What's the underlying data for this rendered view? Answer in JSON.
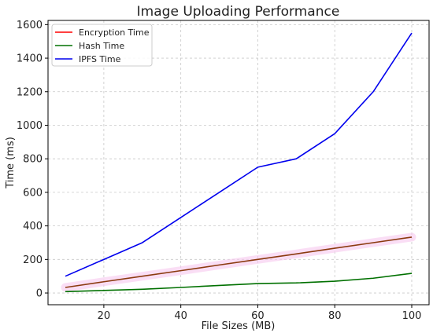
{
  "chart_data": {
    "type": "line",
    "title": "Image Uploading Performance",
    "xlabel": "File Sizes (MB)",
    "ylabel": "Time (ms)",
    "x": [
      10,
      20,
      30,
      40,
      50,
      60,
      70,
      80,
      90,
      100
    ],
    "xlim": [
      5.5,
      104.5
    ],
    "ylim": [
      -70,
      1625
    ],
    "xticks": [
      20,
      40,
      60,
      80,
      100
    ],
    "yticks": [
      0,
      200,
      400,
      600,
      800,
      1000,
      1200,
      1400,
      1600
    ],
    "grid": true,
    "legend_position": "top-left",
    "series": [
      {
        "name": "Encryption Time",
        "color": "#ff0000",
        "values": [
          33,
          67,
          100,
          133,
          167,
          200,
          233,
          267,
          300,
          333
        ]
      },
      {
        "name": "Hash Time",
        "color": "#007000",
        "values": [
          8,
          15,
          22,
          33,
          45,
          56,
          60,
          70,
          88,
          117
        ]
      },
      {
        "name": "IPFS Time",
        "color": "#0000ee",
        "values": [
          100,
          200,
          300,
          450,
          600,
          750,
          800,
          950,
          1200,
          1550
        ]
      }
    ],
    "overlap_color": "#8b3a0f",
    "band_color": "#f7c8ee"
  }
}
